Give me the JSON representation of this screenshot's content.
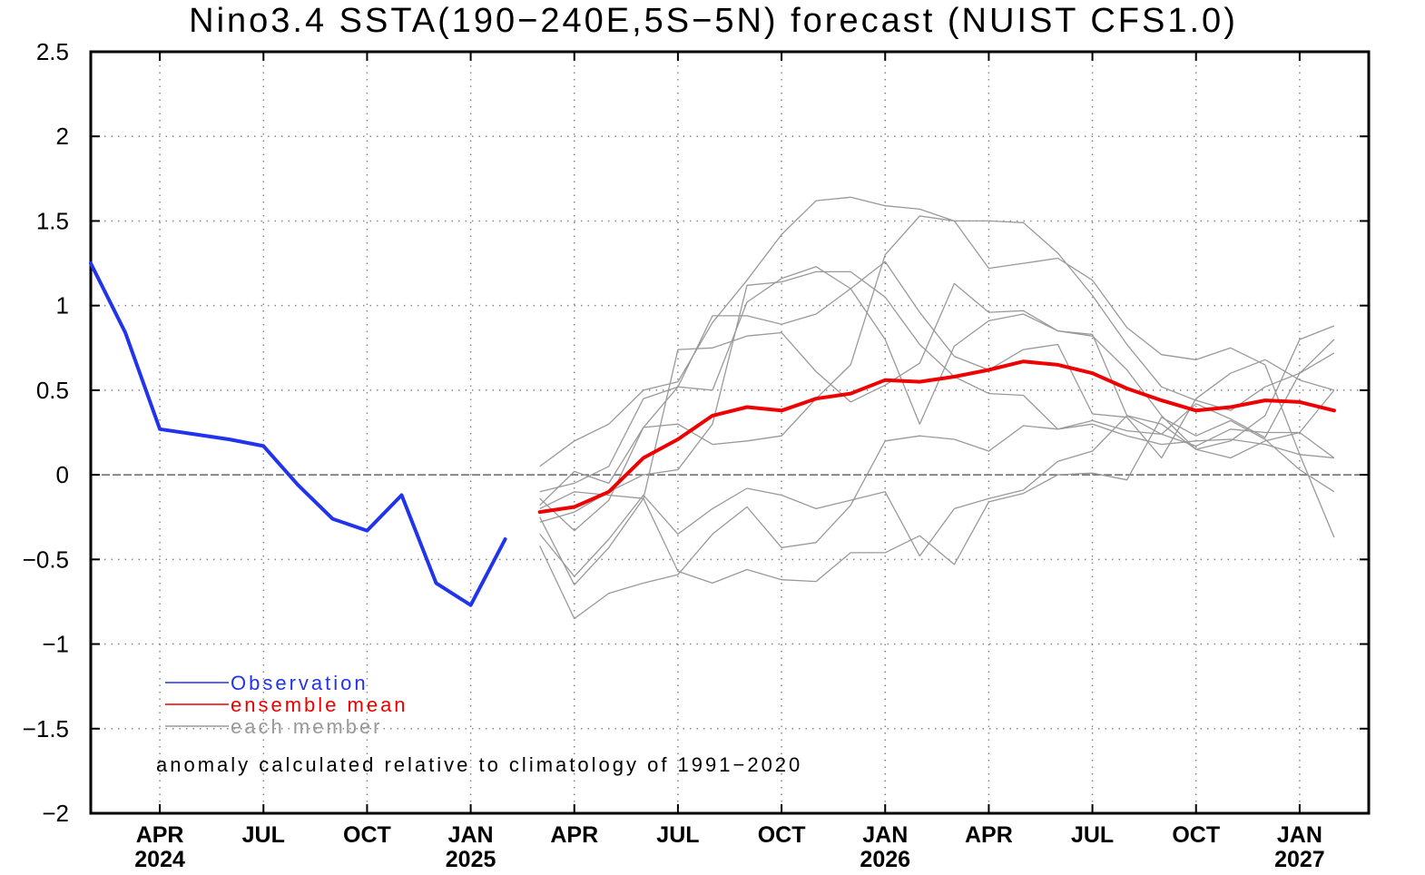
{
  "chart_data": {
    "type": "line",
    "title": "Nino3.4 SSTA(190−240E,5S−5N) forecast (NUIST CFS1.0)",
    "xlabel": "",
    "ylabel": "",
    "annotation": "anomaly calculated relative to climatology of 1991−2020",
    "x_axis": {
      "type": "date",
      "range": [
        "2024-02",
        "2027-03"
      ],
      "ticks": [
        {
          "date": "2024-04",
          "label": "APR",
          "year": "2024"
        },
        {
          "date": "2024-07",
          "label": "JUL",
          "year": ""
        },
        {
          "date": "2024-10",
          "label": "OCT",
          "year": ""
        },
        {
          "date": "2025-01",
          "label": "JAN",
          "year": "2025"
        },
        {
          "date": "2025-04",
          "label": "APR",
          "year": ""
        },
        {
          "date": "2025-07",
          "label": "JUL",
          "year": ""
        },
        {
          "date": "2025-10",
          "label": "OCT",
          "year": ""
        },
        {
          "date": "2026-01",
          "label": "JAN",
          "year": "2026"
        },
        {
          "date": "2026-04",
          "label": "APR",
          "year": ""
        },
        {
          "date": "2026-07",
          "label": "JUL",
          "year": ""
        },
        {
          "date": "2026-10",
          "label": "OCT",
          "year": ""
        },
        {
          "date": "2027-01",
          "label": "JAN",
          "year": "2027"
        }
      ]
    },
    "y_axis": {
      "range": [
        -2,
        2.5
      ],
      "ticks": [
        {
          "value": 2.5,
          "label": "2.5"
        },
        {
          "value": 2,
          "label": "2"
        },
        {
          "value": 1.5,
          "label": "1.5"
        },
        {
          "value": 1,
          "label": "1"
        },
        {
          "value": 0.5,
          "label": "0.5"
        },
        {
          "value": 0,
          "label": "0"
        },
        {
          "value": -0.5,
          "label": "−0.5"
        },
        {
          "value": -1,
          "label": "−1"
        },
        {
          "value": -1.5,
          "label": "−1.5"
        },
        {
          "value": -2,
          "label": "−2"
        }
      ]
    },
    "grid": true,
    "zero_line": true,
    "legend": {
      "position": "bottom-left",
      "entries": [
        {
          "name": "Observation",
          "color": "#2233ee"
        },
        {
          "name": "ensemble mean",
          "color": "#ee0000"
        },
        {
          "name": "each member",
          "color": "#999999"
        }
      ]
    },
    "observation": {
      "name": "Observation",
      "color": "#2233ee",
      "x": [
        "2024-02",
        "2024-03",
        "2024-04",
        "2024-05",
        "2024-06",
        "2024-07",
        "2024-08",
        "2024-09",
        "2024-10",
        "2024-11",
        "2024-12",
        "2025-01",
        "2025-02"
      ],
      "values": [
        1.25,
        0.84,
        0.27,
        0.24,
        0.21,
        0.17,
        -0.06,
        -0.26,
        -0.33,
        -0.12,
        -0.64,
        -0.77,
        -0.38
      ]
    },
    "ensemble_mean": {
      "name": "ensemble mean",
      "color": "#ee0000",
      "x": [
        "2025-03",
        "2025-04",
        "2025-05",
        "2025-06",
        "2025-07",
        "2025-08",
        "2025-09",
        "2025-10",
        "2025-11",
        "2025-12",
        "2026-01",
        "2026-02",
        "2026-03",
        "2026-04",
        "2026-05",
        "2026-06",
        "2026-07",
        "2026-08",
        "2026-09",
        "2026-10",
        "2026-11",
        "2026-12",
        "2027-01",
        "2027-02"
      ],
      "values": [
        -0.22,
        -0.19,
        -0.1,
        0.1,
        0.21,
        0.35,
        0.4,
        0.38,
        0.45,
        0.48,
        0.56,
        0.55,
        0.58,
        0.62,
        0.67,
        0.65,
        0.6,
        0.51,
        0.44,
        0.38,
        0.4,
        0.44,
        0.43,
        0.38
      ]
    },
    "members": {
      "name": "each member",
      "color": "#999999",
      "x": [
        "2025-03",
        "2025-04",
        "2025-05",
        "2025-06",
        "2025-07",
        "2025-08",
        "2025-09",
        "2025-10",
        "2025-11",
        "2025-12",
        "2026-01",
        "2026-02",
        "2026-03",
        "2026-04",
        "2026-05",
        "2026-06",
        "2026-07",
        "2026-08",
        "2026-09",
        "2026-10",
        "2026-11",
        "2026-12",
        "2027-01",
        "2027-02"
      ],
      "series": [
        [
          0.05,
          0.2,
          0.3,
          0.5,
          0.55,
          0.9,
          1.15,
          1.42,
          1.62,
          1.64,
          1.59,
          1.57,
          1.5,
          1.5,
          1.49,
          1.31,
          1.06,
          0.77,
          0.52,
          0.44,
          0.38,
          0.52,
          0.6,
          0.72
        ],
        [
          -0.1,
          -0.05,
          0.05,
          0.45,
          0.52,
          0.5,
          1.02,
          1.16,
          1.23,
          1.1,
          0.8,
          0.3,
          0.76,
          0.91,
          0.95,
          0.85,
          0.82,
          0.62,
          0.35,
          0.15,
          0.2,
          0.35,
          0.8,
          0.88
        ],
        [
          -0.18,
          0.02,
          -0.05,
          0.28,
          0.3,
          0.18,
          0.2,
          0.23,
          0.45,
          0.65,
          1.3,
          1.53,
          1.5,
          1.22,
          1.25,
          1.28,
          1.15,
          0.87,
          0.71,
          0.68,
          0.75,
          0.65,
          0.12,
          -0.37
        ],
        [
          -0.28,
          -0.22,
          -0.1,
          0.0,
          0.03,
          0.3,
          1.12,
          1.14,
          1.2,
          1.2,
          1.05,
          0.77,
          0.58,
          0.48,
          0.47,
          0.27,
          0.32,
          0.26,
          0.24,
          0.42,
          0.33,
          0.22,
          0.6,
          0.8
        ],
        [
          -0.35,
          -0.6,
          -0.38,
          -0.12,
          -0.35,
          -0.2,
          -0.08,
          -0.12,
          -0.2,
          -0.15,
          -0.1,
          -0.48,
          -0.2,
          -0.14,
          -0.09,
          0.08,
          0.14,
          0.35,
          0.3,
          0.15,
          0.1,
          0.2,
          0.25,
          0.1
        ],
        [
          -0.42,
          -0.85,
          -0.7,
          -0.64,
          -0.59,
          -0.35,
          -0.19,
          -0.43,
          -0.4,
          -0.18,
          0.2,
          0.23,
          0.21,
          0.14,
          0.29,
          0.27,
          0.3,
          0.23,
          0.18,
          0.2,
          0.21,
          0.18,
          0.12,
          0.1
        ],
        [
          -0.14,
          -0.33,
          -0.15,
          0.28,
          0.52,
          0.94,
          0.94,
          0.89,
          0.95,
          1.1,
          1.26,
          0.96,
          0.7,
          0.62,
          0.74,
          0.77,
          0.36,
          0.34,
          0.1,
          0.45,
          0.6,
          0.68,
          0.56,
          0.5
        ],
        [
          -0.25,
          -0.65,
          -0.43,
          -0.14,
          0.74,
          0.75,
          0.82,
          0.84,
          0.61,
          0.43,
          0.53,
          0.66,
          1.13,
          0.96,
          0.97,
          0.85,
          0.83,
          0.35,
          0.24,
          0.17,
          0.27,
          0.25,
          0.25,
          0.5
        ],
        [
          -0.2,
          -0.1,
          -0.12,
          -0.14,
          -0.57,
          -0.64,
          -0.56,
          -0.62,
          -0.63,
          -0.46,
          -0.46,
          -0.36,
          -0.53,
          -0.16,
          -0.11,
          0.0,
          0.01,
          -0.03,
          0.34,
          0.23,
          0.32,
          0.21,
          0.03,
          -0.1
        ]
      ]
    }
  }
}
